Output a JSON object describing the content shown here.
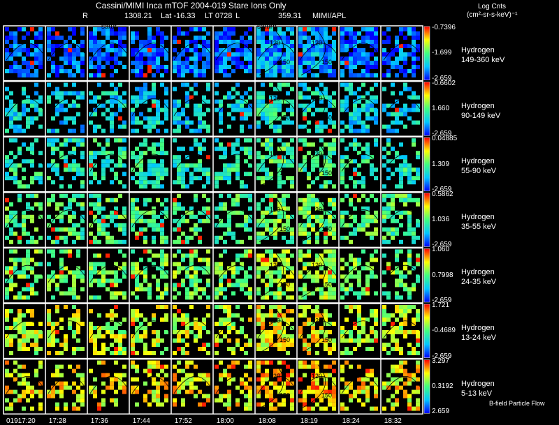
{
  "chart_data": {
    "type": "heatmap",
    "title": "Cassini/MIMI Inca mTOF  2004-019   Stare   Ions Only",
    "subtitle": {
      "r_label": "R",
      "r_value": "1308.21",
      "lat": "Lat -16.33",
      "lt": "LT 0728",
      "l_label": "L",
      "l_value": "359.31",
      "source": "MIMI/APL"
    },
    "panel_annotations": [
      "satur",
      "saturn"
    ],
    "colorbar_title": "Log Cnts",
    "colorbar_units": "(cm²-sr-s-keV)⁻¹",
    "footer_note": "B-field Particle Flow",
    "date_prefix": "019",
    "times": [
      "17:20",
      "17:28",
      "17:36",
      "17:44",
      "17:52",
      "18:00",
      "18:08",
      "18:19",
      "18:24",
      "18:32"
    ],
    "contour_labels": [
      "120",
      "150"
    ],
    "rows": [
      {
        "species": "Hydrogen",
        "energy": "149-360 keV",
        "max": "-0.7396",
        "mid": "-1.699",
        "min": "-2.659",
        "level": 0.12,
        "coverage": 0.85
      },
      {
        "species": "Hydrogen",
        "energy": "90-149 keV",
        "max": "-0.6602",
        "mid": "1.660",
        "min": "-2.659",
        "level": 0.3,
        "coverage": 0.55
      },
      {
        "species": "Hydrogen",
        "energy": "55-90 keV",
        "max": "0.04885",
        "mid": "1.309",
        "min": "-2.659",
        "level": 0.4,
        "coverage": 0.55
      },
      {
        "species": "Hydrogen",
        "energy": "35-55 keV",
        "max": "0.5862",
        "mid": "1.036",
        "min": "-2.659",
        "level": 0.48,
        "coverage": 0.58
      },
      {
        "species": "Hydrogen",
        "energy": "24-35 keV",
        "max": "1.060",
        "mid": "0.7998",
        "min": "-2.659",
        "level": 0.55,
        "coverage": 0.58
      },
      {
        "species": "Hydrogen",
        "energy": "13-24 keV",
        "max": "1.721",
        "mid": "-0.4689",
        "min": "-2.659",
        "level": 0.66,
        "coverage": 0.62
      },
      {
        "species": "Hydrogen",
        "energy": "5-13 keV",
        "max": "3.297",
        "mid": "0.3192",
        "min": "2.659",
        "level": 0.74,
        "coverage": 0.5
      }
    ]
  }
}
